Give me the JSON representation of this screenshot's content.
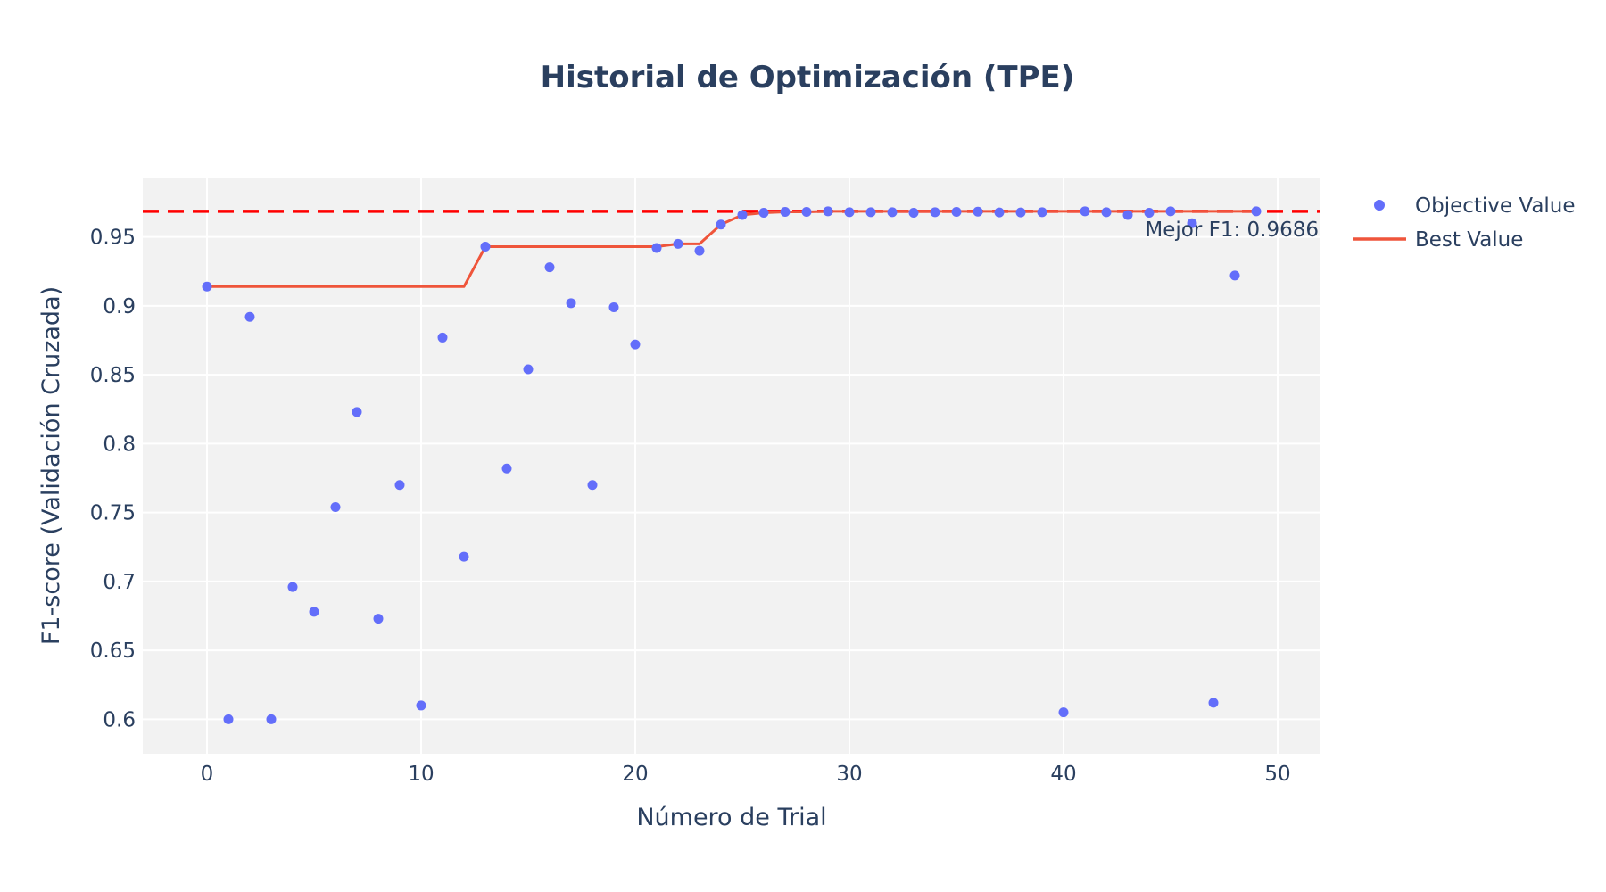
{
  "chart_data": {
    "type": "scatter",
    "title": "Historial de Optimización (TPE)",
    "xlabel": "Número de Trial",
    "ylabel": "F1-score (Validación Cruzada)",
    "xlim": [
      -3,
      52
    ],
    "ylim": [
      0.575,
      0.9925
    ],
    "x_ticks": [
      0,
      10,
      20,
      30,
      40,
      50
    ],
    "x_tick_labels": [
      "0",
      "10",
      "20",
      "30",
      "40",
      "50"
    ],
    "y_ticks": [
      0.6,
      0.65,
      0.7,
      0.75,
      0.8,
      0.85,
      0.9,
      0.95
    ],
    "y_tick_labels": [
      "0.6",
      "0.65",
      "0.7",
      "0.75",
      "0.8",
      "0.85",
      "0.9",
      "0.95"
    ],
    "grid": true,
    "legend_position": "top-right-outside",
    "series": [
      {
        "name": "Objective Value",
        "mode": "markers",
        "color": "#636efa",
        "x": [
          0,
          1,
          2,
          3,
          4,
          5,
          6,
          7,
          8,
          9,
          10,
          11,
          12,
          13,
          14,
          15,
          16,
          17,
          18,
          19,
          20,
          21,
          22,
          23,
          24,
          25,
          26,
          27,
          28,
          29,
          30,
          31,
          32,
          33,
          34,
          35,
          36,
          37,
          38,
          39,
          40,
          41,
          42,
          43,
          44,
          45,
          46,
          47,
          48,
          49
        ],
        "y": [
          0.914,
          0.6,
          0.892,
          0.6,
          0.696,
          0.678,
          0.754,
          0.823,
          0.673,
          0.77,
          0.61,
          0.877,
          0.718,
          0.943,
          0.782,
          0.854,
          0.928,
          0.902,
          0.77,
          0.899,
          0.872,
          0.942,
          0.945,
          0.94,
          0.959,
          0.966,
          0.9676,
          0.9682,
          0.9682,
          0.9686,
          0.968,
          0.968,
          0.968,
          0.9676,
          0.968,
          0.9682,
          0.9684,
          0.9678,
          0.9678,
          0.968,
          0.605,
          0.9686,
          0.968,
          0.966,
          0.9676,
          0.9686,
          0.96,
          0.612,
          0.922,
          0.9686
        ]
      },
      {
        "name": "Best Value",
        "mode": "lines",
        "color": "#ef553b",
        "x": [
          0,
          1,
          2,
          3,
          4,
          5,
          6,
          7,
          8,
          9,
          10,
          11,
          12,
          13,
          14,
          15,
          16,
          17,
          18,
          19,
          20,
          21,
          22,
          23,
          24,
          25,
          26,
          27,
          28,
          29,
          30,
          31,
          32,
          33,
          34,
          35,
          36,
          37,
          38,
          39,
          40,
          41,
          42,
          43,
          44,
          45,
          46,
          47,
          48,
          49
        ],
        "y": [
          0.914,
          0.914,
          0.914,
          0.914,
          0.914,
          0.914,
          0.914,
          0.914,
          0.914,
          0.914,
          0.914,
          0.914,
          0.914,
          0.943,
          0.943,
          0.943,
          0.943,
          0.943,
          0.943,
          0.943,
          0.943,
          0.943,
          0.945,
          0.945,
          0.959,
          0.966,
          0.9676,
          0.9682,
          0.9682,
          0.9686,
          0.9686,
          0.9686,
          0.9686,
          0.9686,
          0.9686,
          0.9686,
          0.9686,
          0.9686,
          0.9686,
          0.9686,
          0.9686,
          0.9686,
          0.9686,
          0.9686,
          0.9686,
          0.9686,
          0.9686,
          0.9686,
          0.9686,
          0.9686
        ]
      }
    ],
    "reference_line": {
      "y": 0.9686,
      "color": "#ff0000",
      "style": "dashed"
    },
    "annotations": [
      {
        "text": "Mejor F1: 0.9686",
        "x": 49,
        "y": 0.9686,
        "position": "below-left"
      }
    ]
  },
  "colors": {
    "plot_background": "#f2f2f2",
    "gridline": "#ffffff",
    "text": "#2a3f5f"
  }
}
